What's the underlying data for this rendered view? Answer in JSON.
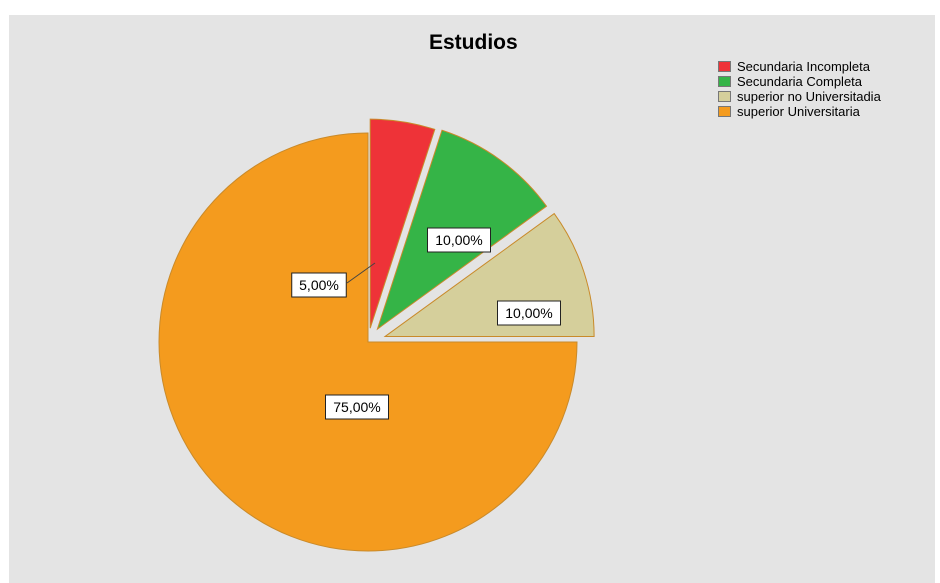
{
  "chart_data": {
    "type": "pie",
    "title": "Estudios",
    "categories": [
      "Secundaria Incompleta",
      "Secundaria Completa",
      "superior no Universitadia",
      "superior Universitaria"
    ],
    "values": [
      5,
      10,
      10,
      75
    ],
    "data_labels": [
      "5,00%",
      "10,00%",
      "10,00%",
      "75,00%"
    ],
    "colors": [
      "#ee3338",
      "#35b447",
      "#d5cf9b",
      "#f49b1e"
    ],
    "exploded": [
      true,
      true,
      true,
      false
    ],
    "legend": "top-right"
  }
}
